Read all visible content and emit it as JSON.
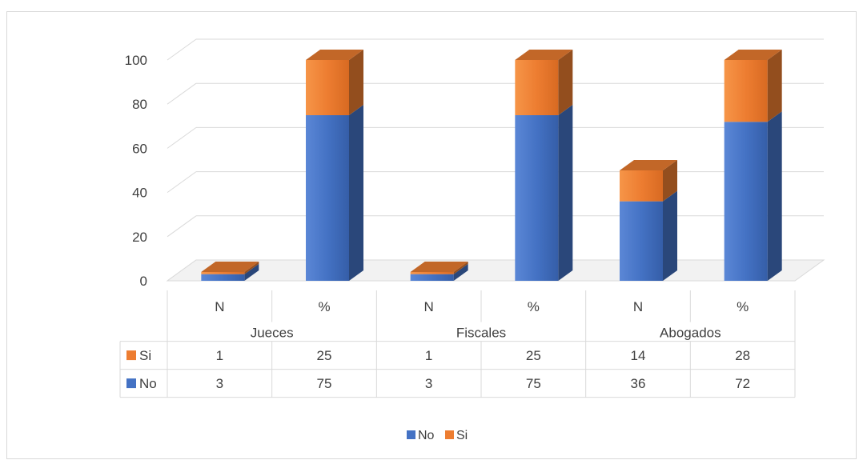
{
  "chart_data": {
    "type": "bar",
    "stacked": true,
    "three_d": true,
    "title": "",
    "xlabel": "",
    "ylabel": "",
    "ylim": [
      0,
      100
    ],
    "yticks": [
      "0",
      "20",
      "40",
      "60",
      "80",
      "100"
    ],
    "groups": [
      "Jueces",
      "Fiscales",
      "Abogados"
    ],
    "subcategories": [
      "N",
      "%",
      "N",
      "%",
      "N",
      "%"
    ],
    "series": [
      {
        "name": "No",
        "color": "#4472c4",
        "values": [
          3,
          75,
          3,
          75,
          36,
          72
        ]
      },
      {
        "name": "Si",
        "color": "#ed7d31",
        "values": [
          1,
          25,
          1,
          25,
          14,
          28
        ]
      }
    ],
    "data_table": true,
    "legend_position": "bottom",
    "grid": true
  }
}
